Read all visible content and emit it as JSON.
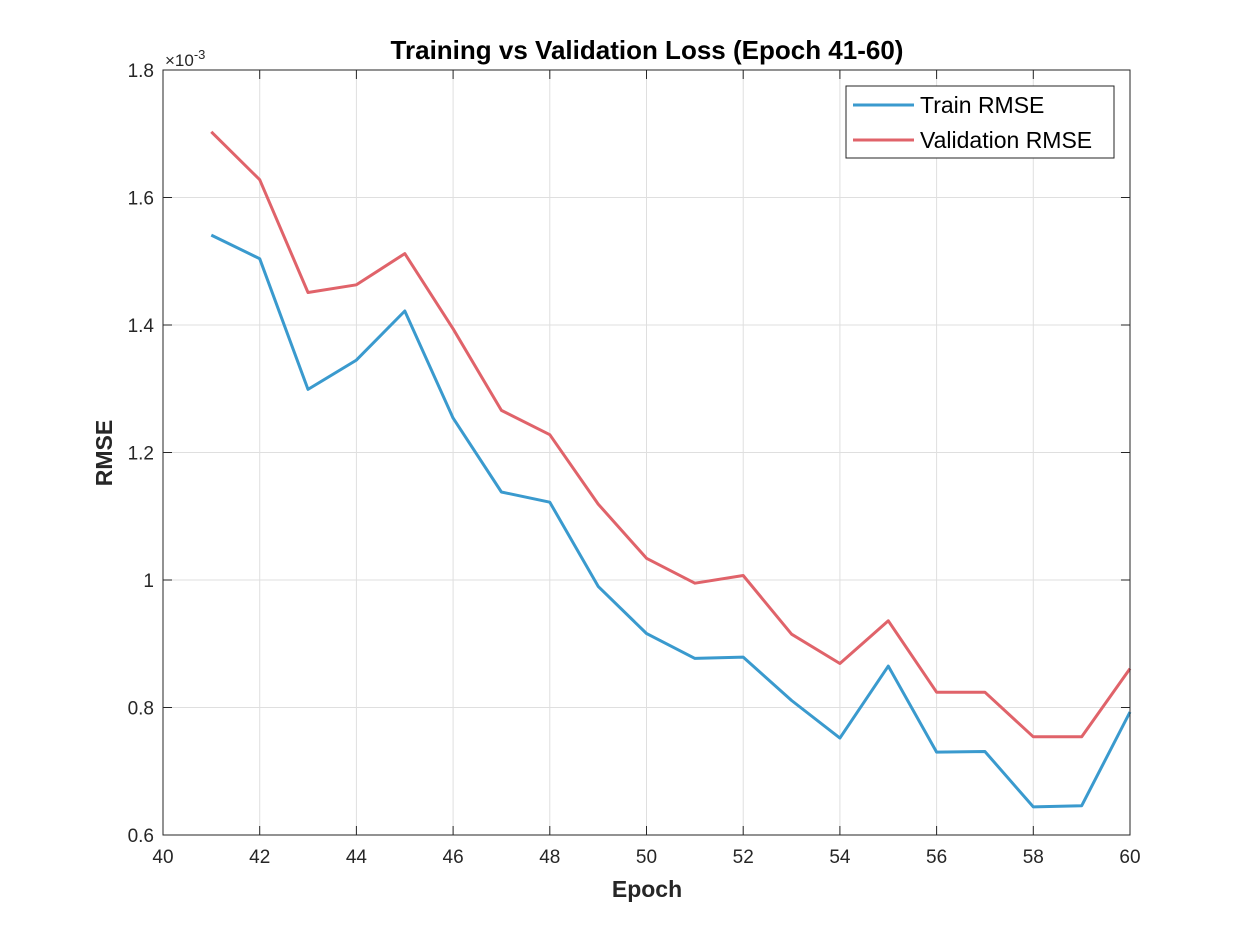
{
  "chart_data": {
    "type": "line",
    "title": "Training vs Validation Loss (Epoch 41-60)",
    "xlabel": "Epoch",
    "ylabel": "RMSE",
    "y_exponent_label": "×10",
    "y_exponent_power": "-3",
    "xlim": [
      40,
      60
    ],
    "ylim": [
      0.6,
      1.8
    ],
    "xticks": [
      40,
      42,
      44,
      46,
      48,
      50,
      52,
      54,
      56,
      58,
      60
    ],
    "xtick_labels": [
      "40",
      "42",
      "44",
      "46",
      "48",
      "50",
      "52",
      "54",
      "56",
      "58",
      "60"
    ],
    "yticks": [
      0.6,
      0.8,
      1.0,
      1.2,
      1.4,
      1.6,
      1.8
    ],
    "ytick_labels": [
      "0.6",
      "0.8",
      "1",
      "1.2",
      "1.4",
      "1.6",
      "1.8"
    ],
    "grid": true,
    "legend_position": "top-right",
    "x": [
      41,
      42,
      43,
      44,
      45,
      46,
      47,
      48,
      49,
      50,
      51,
      52,
      53,
      54,
      55,
      56,
      57,
      58,
      59,
      60
    ],
    "series": [
      {
        "name": "Train RMSE",
        "color": "#3a9ace",
        "values": [
          1.541,
          1.504,
          1.299,
          1.345,
          1.422,
          1.254,
          1.138,
          1.122,
          0.99,
          0.916,
          0.877,
          0.879,
          0.811,
          0.752,
          0.865,
          0.73,
          0.731,
          0.644,
          0.646,
          0.793
        ]
      },
      {
        "name": "Validation RMSE",
        "color": "#e0636a",
        "values": [
          1.703,
          1.628,
          1.451,
          1.463,
          1.512,
          1.394,
          1.266,
          1.228,
          1.119,
          1.034,
          0.995,
          1.007,
          0.915,
          0.869,
          0.936,
          0.824,
          0.824,
          0.754,
          0.754,
          0.861
        ]
      }
    ]
  }
}
